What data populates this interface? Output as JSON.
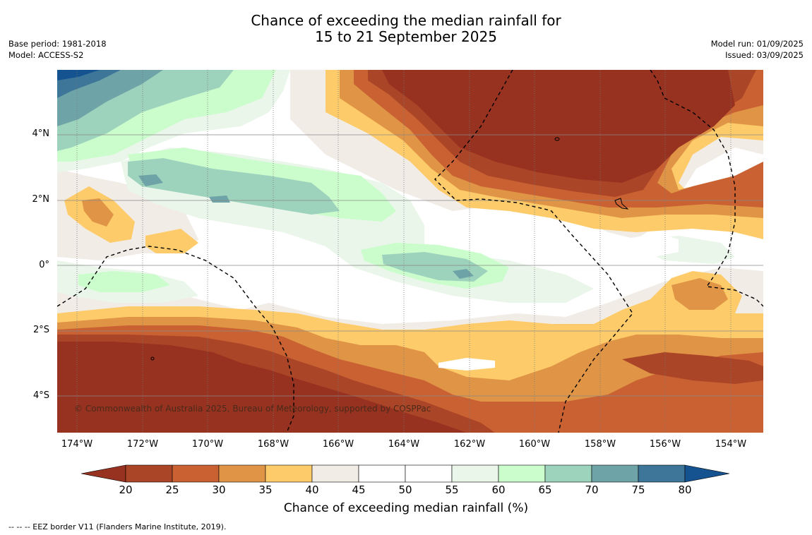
{
  "title_line1": "Chance of exceeding the median rainfall for",
  "title_line2": "15 to 21 September 2025",
  "base_period": "Base period: 1981-2018",
  "model": "Model: ACCESS-S2",
  "model_run": "Model run: 01/09/2025",
  "issued": "Issued: 03/09/2025",
  "lat_labels": [
    "4°N",
    "2°N",
    "0°",
    "2°S",
    "4°S"
  ],
  "lon_labels": [
    "174°W",
    "172°W",
    "170°W",
    "168°W",
    "166°W",
    "164°W",
    "162°W",
    "160°W",
    "158°W",
    "156°W",
    "154°W"
  ],
  "credit": "© Commonwealth of Australia 2025, Bureau of Meteorology, supported by COSPPac",
  "colorbar": {
    "labels": [
      "20",
      "25",
      "30",
      "35",
      "40",
      "45",
      "50",
      "55",
      "60",
      "65",
      "70",
      "75",
      "80"
    ],
    "title": "Chance of exceeding median rainfall (%)",
    "colors": [
      "#973220",
      "#ab4527",
      "#c96132",
      "#e09446",
      "#fecb6a",
      "#f1ece6",
      "#ffffff",
      "#ffffff",
      "#e9f6e9",
      "#cbfdcc",
      "#9dd2bd",
      "#6ea3a7",
      "#3d7699",
      "#155390"
    ]
  },
  "footnote": "--  --  -- EEZ border V11 (Flanders Marine Institute, 2019)."
}
